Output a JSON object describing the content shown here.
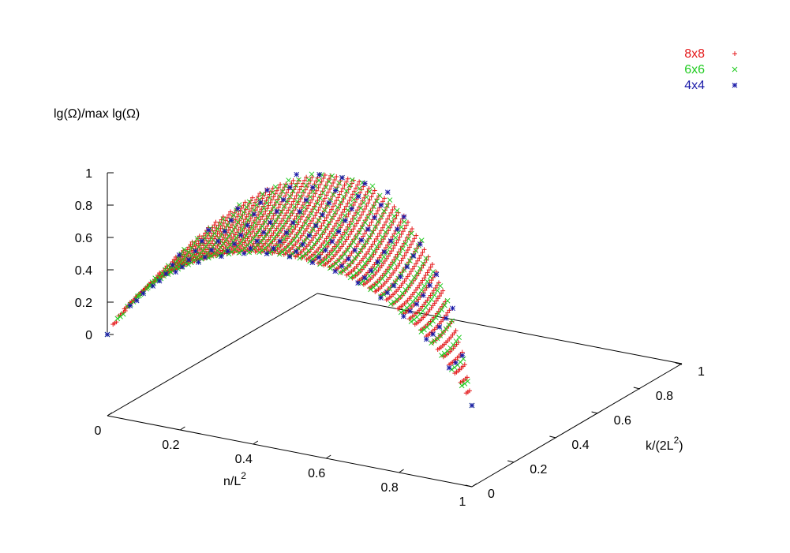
{
  "chart_data": {
    "type": "scatter",
    "dimensions": 3,
    "zlabel": "lg(Ω)/max lg(Ω)",
    "xlabel": {
      "base": "n/L",
      "sup": "2",
      "tail": ""
    },
    "ylabel": {
      "base": "k/(2L",
      "sup": "2",
      "tail": ")"
    },
    "x_ticks": [
      "0",
      "0.2",
      "0.4",
      "0.6",
      "0.8",
      "1"
    ],
    "y_ticks": [
      "0",
      "0.2",
      "0.4",
      "0.6",
      "0.8",
      "1"
    ],
    "z_ticks": [
      "0",
      "0.2",
      "0.4",
      "0.6",
      "0.8",
      "1"
    ],
    "xlim": [
      0,
      1
    ],
    "ylim": [
      0,
      1
    ],
    "zlim": [
      0,
      1
    ],
    "legend_position": "top-right",
    "surface": "z = H(x, y) / max H, with H the lattice entropy for n of L^2 sites and k of 2L^2 bonds, defined for 0 <= y <= 2x(1-x)",
    "series": [
      {
        "name": "8x8",
        "L": 8,
        "marker": "+",
        "color": "#e41a1c"
      },
      {
        "name": "6x6",
        "L": 6,
        "marker": "x",
        "color": "#22cc22"
      },
      {
        "name": "4x4",
        "L": 4,
        "marker": "*",
        "color": "#1a1aa8"
      }
    ]
  }
}
